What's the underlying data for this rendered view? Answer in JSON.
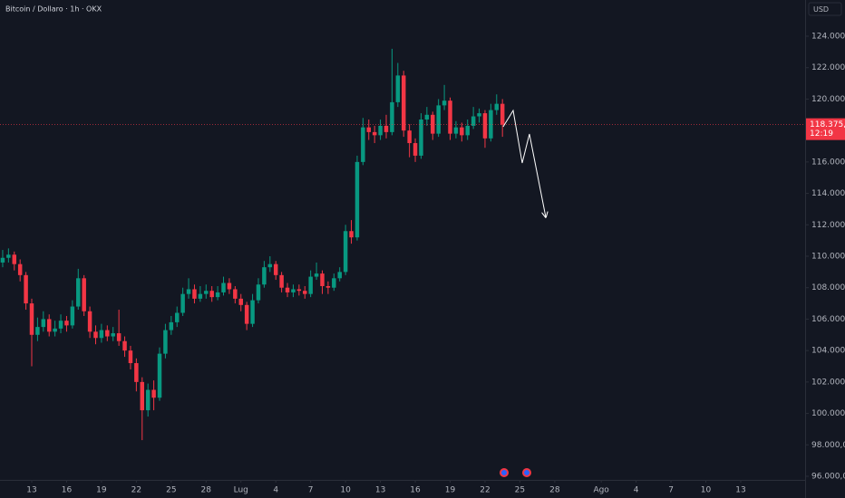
{
  "chart_data": {
    "type": "candlestick",
    "title": "Bitcoin / Dollaro · 1h · OKX",
    "currency": "USD",
    "x": [
      -2.5,
      -2,
      -1.5,
      -1,
      -0.5,
      0,
      0.5,
      1,
      1.5,
      2,
      2.5,
      3,
      3.5,
      4,
      4.5,
      5,
      5.5,
      6,
      6.5,
      7,
      7.5,
      8,
      8.5,
      9,
      9.5,
      10,
      10.5,
      11,
      11.5,
      12,
      12.5,
      13,
      13.5,
      14,
      14.5,
      15,
      15.5,
      16,
      16.5,
      17,
      17.5,
      18,
      18.5,
      19,
      19.5,
      20,
      20.5,
      21,
      21.5,
      22,
      22.5,
      23,
      23.5,
      24,
      24.5,
      25,
      25.5,
      26,
      26.5,
      27,
      27.5,
      28,
      28.5,
      29,
      29.5,
      30,
      30.5,
      31,
      31.5,
      32,
      32.5,
      33,
      33.5,
      34,
      34.5,
      35,
      35.5,
      36,
      36.5,
      37,
      37.5,
      38,
      38.5,
      39,
      39.5,
      40,
      40.5
    ],
    "open": [
      109600,
      109900,
      110100,
      109500,
      108800,
      107000,
      105000,
      105500,
      106000,
      105200,
      105400,
      105900,
      105600,
      106800,
      108600,
      106500,
      105200,
      104800,
      105300,
      104900,
      105100,
      104600,
      104000,
      103200,
      102000,
      100200,
      101500,
      101000,
      103800,
      105300,
      105800,
      106400,
      107600,
      107900,
      107300,
      107600,
      107800,
      107400,
      107700,
      108300,
      107900,
      107300,
      106900,
      105700,
      107200,
      108200,
      109300,
      109500,
      108800,
      108000,
      107700,
      107900,
      107800,
      107600,
      108700,
      108900,
      108100,
      108000,
      108600,
      109000,
      111600,
      111200,
      116000,
      118200,
      117900,
      117700,
      118300,
      117900,
      119800,
      121500,
      118000,
      117200,
      116400,
      118700,
      119000,
      117800,
      119600,
      119900,
      117800,
      118200,
      117700,
      118300,
      118900,
      119100,
      117500,
      119300,
      119700
    ],
    "high": [
      110400,
      110500,
      110300,
      109800,
      109000,
      107300,
      106100,
      106500,
      106300,
      105900,
      106300,
      106200,
      107200,
      109200,
      108800,
      106800,
      105600,
      105700,
      105600,
      105500,
      106600,
      104900,
      104300,
      103500,
      102300,
      101900,
      102100,
      104200,
      105700,
      106200,
      106800,
      108000,
      108600,
      108200,
      108100,
      108200,
      108100,
      108100,
      108700,
      108600,
      108100,
      107600,
      107100,
      107600,
      108600,
      109700,
      110000,
      109700,
      109000,
      108300,
      108200,
      108200,
      108100,
      109100,
      109600,
      109100,
      108400,
      108900,
      109300,
      112000,
      112300,
      116400,
      118800,
      118700,
      118300,
      118700,
      119000,
      123200,
      122300,
      121800,
      118400,
      117500,
      119100,
      119500,
      119200,
      120000,
      120900,
      120100,
      118600,
      118500,
      118700,
      119500,
      119400,
      119300,
      119700,
      120300,
      120000
    ],
    "low": [
      109300,
      109600,
      109100,
      108400,
      106600,
      103000,
      104600,
      105200,
      104900,
      104900,
      105100,
      105200,
      105400,
      106600,
      106200,
      104800,
      104400,
      104500,
      104600,
      104600,
      104300,
      103600,
      102800,
      101400,
      98300,
      99800,
      100200,
      100800,
      103500,
      105000,
      105500,
      106200,
      107300,
      107000,
      107100,
      107300,
      107100,
      107200,
      107500,
      107600,
      107000,
      106500,
      105300,
      105500,
      107000,
      108000,
      109000,
      108500,
      107700,
      107400,
      107400,
      107500,
      107300,
      107400,
      108500,
      107600,
      107600,
      107800,
      108400,
      108800,
      110800,
      111000,
      115800,
      117400,
      117200,
      117400,
      117500,
      117700,
      119500,
      117600,
      116300,
      116000,
      116200,
      118300,
      117400,
      117600,
      119300,
      117400,
      117500,
      117300,
      117400,
      118100,
      118500,
      116900,
      117300,
      119000,
      117600
    ],
    "close": [
      109900,
      110100,
      109500,
      108800,
      107000,
      105000,
      105500,
      106000,
      105200,
      105400,
      105900,
      105600,
      106800,
      108600,
      106500,
      105200,
      104800,
      105300,
      104900,
      105100,
      104600,
      104000,
      103200,
      102000,
      100200,
      101500,
      101000,
      103800,
      105300,
      105800,
      106400,
      107600,
      107900,
      107300,
      107600,
      107800,
      107400,
      107700,
      108300,
      107900,
      107300,
      106900,
      105700,
      107200,
      108200,
      109300,
      109500,
      108800,
      108000,
      107700,
      107900,
      107800,
      107600,
      108700,
      108900,
      108100,
      108000,
      108600,
      109000,
      111600,
      111200,
      116000,
      118200,
      117900,
      117700,
      118300,
      117900,
      119800,
      121500,
      118000,
      117200,
      116400,
      118700,
      119000,
      117800,
      119600,
      119900,
      117800,
      118200,
      117700,
      118300,
      118900,
      119100,
      117500,
      119300,
      119700,
      118375.1
    ],
    "up_color": "#089981",
    "down_color": "#f23645",
    "last_price": {
      "value": 118375.1,
      "label": "118.375,1"
    },
    "countdown": "12:19",
    "projection": {
      "color": "#ffffff",
      "x": [
        40.56,
        41.42,
        42.2,
        42.82,
        44.23
      ],
      "y": [
        118238,
        119275,
        115933,
        117777,
        112476
      ]
    },
    "xlim": [
      -2.73,
      66.54
    ],
    "ylim": [
      95770,
      126305
    ],
    "xticks": [
      {
        "value": 0,
        "label": "13"
      },
      {
        "value": 3,
        "label": "16"
      },
      {
        "value": 6,
        "label": "19"
      },
      {
        "value": 9,
        "label": "22"
      },
      {
        "value": 12,
        "label": "25"
      },
      {
        "value": 15,
        "label": "28"
      },
      {
        "value": 18,
        "label": "Lug"
      },
      {
        "value": 21,
        "label": "4"
      },
      {
        "value": 24,
        "label": "7"
      },
      {
        "value": 27,
        "label": "10"
      },
      {
        "value": 30,
        "label": "13"
      },
      {
        "value": 33,
        "label": "16"
      },
      {
        "value": 36,
        "label": "19"
      },
      {
        "value": 39,
        "label": "22"
      },
      {
        "value": 42,
        "label": "25"
      },
      {
        "value": 45,
        "label": "28"
      },
      {
        "value": 49,
        "label": "Ago"
      },
      {
        "value": 52,
        "label": "4"
      },
      {
        "value": 55,
        "label": "7"
      },
      {
        "value": 58,
        "label": "10"
      },
      {
        "value": 61,
        "label": "13"
      }
    ],
    "yticks": [
      {
        "value": 96000,
        "label": "96.000,0"
      },
      {
        "value": 98000,
        "label": "98.000,0"
      },
      {
        "value": 100000,
        "label": "100.000,0"
      },
      {
        "value": 102000,
        "label": "102.000,0"
      },
      {
        "value": 104000,
        "label": "104.000,0"
      },
      {
        "value": 106000,
        "label": "106.000,0"
      },
      {
        "value": 108000,
        "label": "108.000,0"
      },
      {
        "value": 110000,
        "label": "110.000,0"
      },
      {
        "value": 112000,
        "label": "112.000,0"
      },
      {
        "value": 114000,
        "label": "114.000,0"
      },
      {
        "value": 116000,
        "label": "116.000,0"
      },
      {
        "value": 118000,
        "label": "118.000,0"
      },
      {
        "value": 120000,
        "label": "120.000,0"
      },
      {
        "value": 122000,
        "label": "122.000,0"
      },
      {
        "value": 124000,
        "label": "124.000,0"
      }
    ]
  }
}
